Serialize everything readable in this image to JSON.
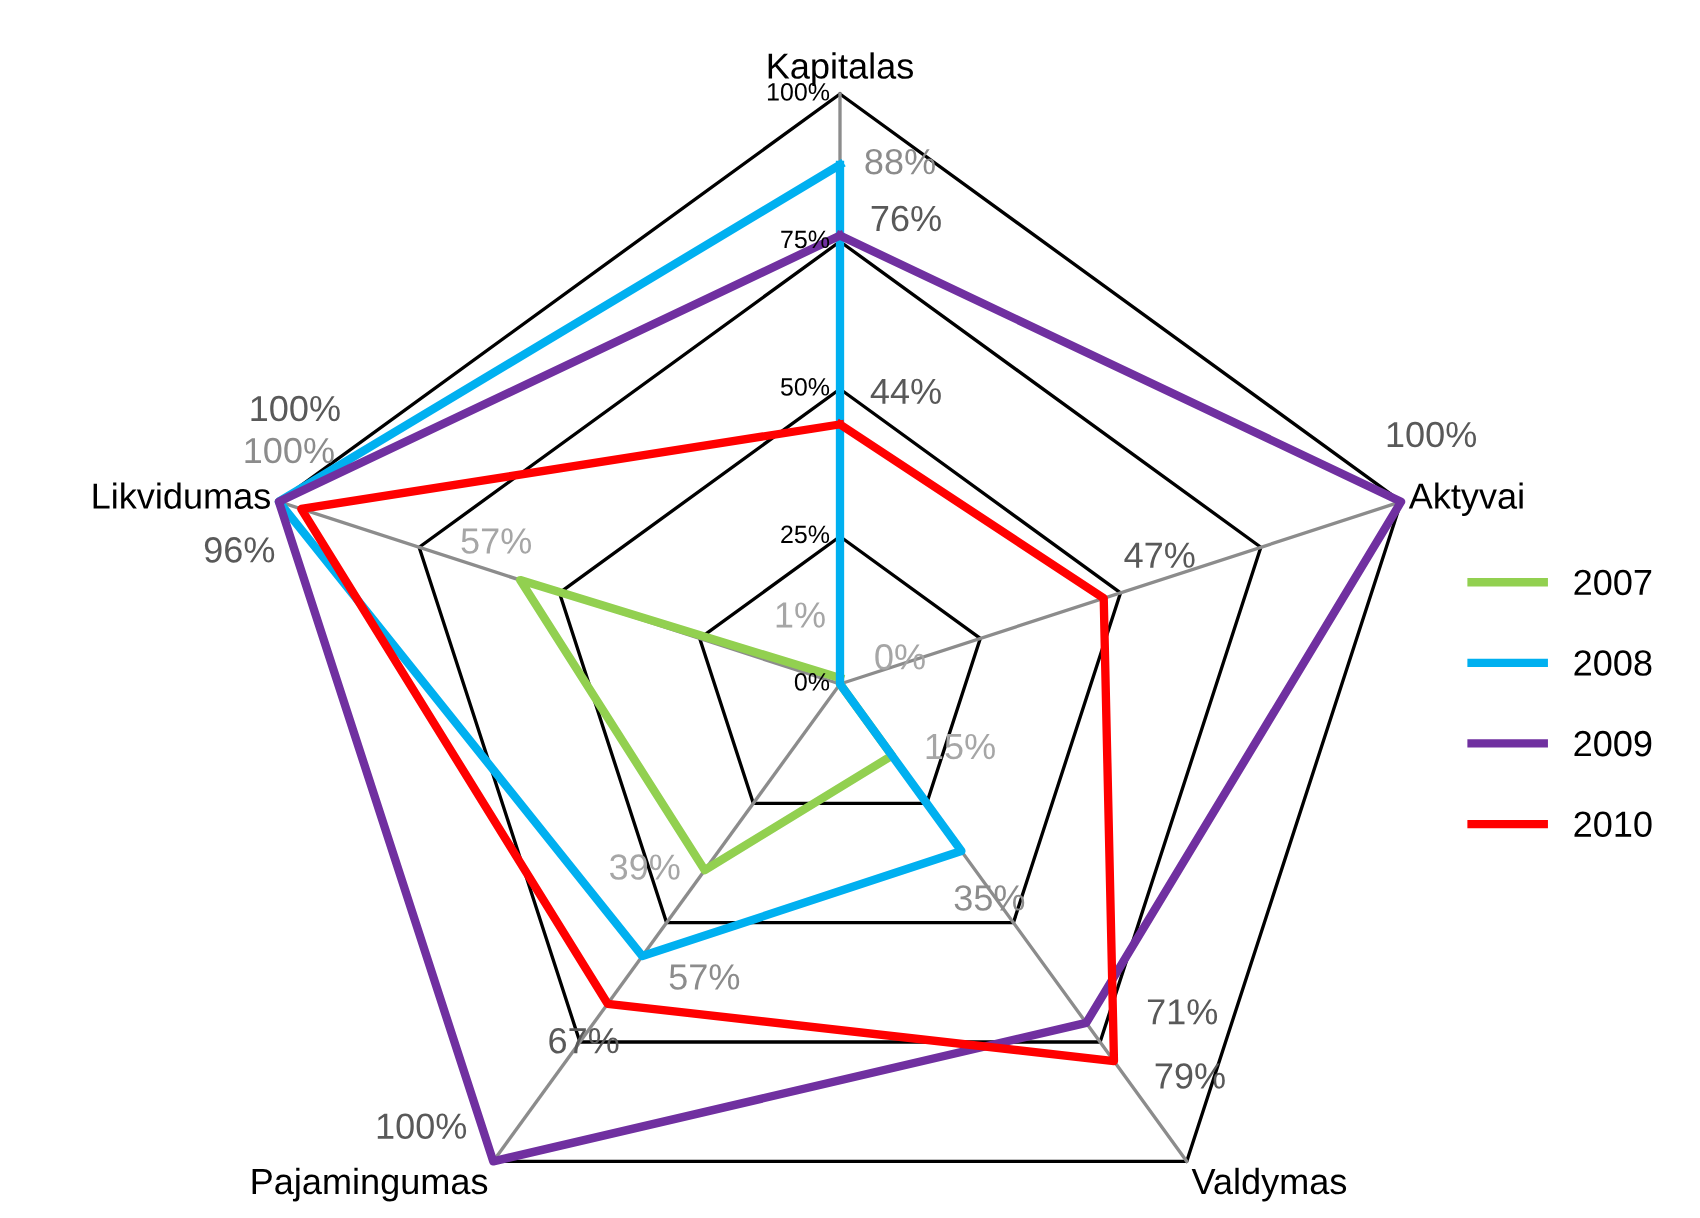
{
  "chart_data": {
    "type": "radar",
    "categories": [
      "Kapitalas",
      "Aktyvai",
      "Valdymas",
      "Pajamingumas",
      "Likvidumas"
    ],
    "ylim": [
      0,
      100
    ],
    "yticks": [
      {
        "value": 0,
        "label": "0%"
      },
      {
        "value": 25,
        "label": "25%"
      },
      {
        "value": 50,
        "label": "50%"
      },
      {
        "value": 75,
        "label": "75%"
      },
      {
        "value": 100,
        "label": "100%"
      }
    ],
    "legend": "right",
    "grid": true,
    "marker": "none",
    "series": [
      {
        "name": "2007",
        "color": "#92d050",
        "values": [
          1,
          0,
          15,
          39,
          57
        ],
        "value_labels": [
          "1%",
          "0%",
          "15%",
          "39%",
          "57%"
        ]
      },
      {
        "name": "2008",
        "color": "#00b0f0",
        "values": [
          88,
          0,
          35,
          57,
          100
        ],
        "value_labels": [
          "88%",
          null,
          "35%",
          "57%",
          "100%"
        ]
      },
      {
        "name": "2009",
        "color": "#7030a0",
        "values": [
          76,
          100,
          71,
          100,
          100
        ],
        "value_labels": [
          "76%",
          "100%",
          "71%",
          "100%",
          "100%"
        ]
      },
      {
        "name": "2010",
        "color": "#ff0000",
        "values": [
          44,
          47,
          79,
          67,
          96
        ],
        "value_labels": [
          "44%",
          "47%",
          "79%",
          "67%",
          "96%"
        ]
      }
    ]
  }
}
